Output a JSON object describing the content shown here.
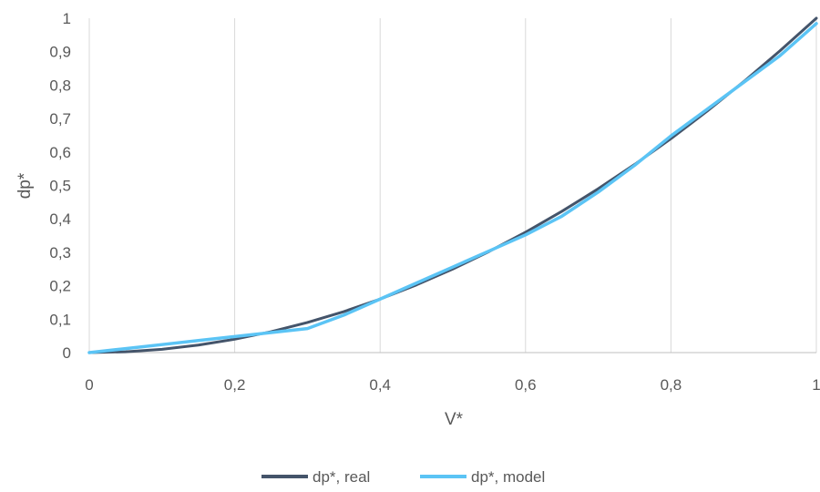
{
  "chart_data": {
    "type": "line",
    "xlabel": "V*",
    "ylabel": "dp*",
    "xlim": [
      0,
      1
    ],
    "ylim": [
      0,
      1
    ],
    "x_ticks": [
      "0",
      "0,2",
      "0,4",
      "0,6",
      "0,8",
      "1"
    ],
    "x_tick_values": [
      0,
      0.2,
      0.4,
      0.6,
      0.8,
      1
    ],
    "y_ticks": [
      "0",
      "0,1",
      "0,2",
      "0,3",
      "0,4",
      "0,5",
      "0,6",
      "0,7",
      "0,8",
      "0,9",
      "1"
    ],
    "y_tick_values": [
      0,
      0.1,
      0.2,
      0.3,
      0.4,
      0.5,
      0.6,
      0.7,
      0.8,
      0.9,
      1
    ],
    "grid": "vertical",
    "legend_position": "bottom",
    "series": [
      {
        "name": "dp*, real",
        "color": "#44546a",
        "x": [
          0,
          0.05,
          0.1,
          0.15,
          0.2,
          0.25,
          0.3,
          0.35,
          0.4,
          0.45,
          0.5,
          0.55,
          0.6,
          0.65,
          0.7,
          0.75,
          0.8,
          0.85,
          0.9,
          0.95,
          1
        ],
        "y": [
          0,
          0.0025,
          0.01,
          0.0225,
          0.04,
          0.0625,
          0.09,
          0.1225,
          0.16,
          0.2025,
          0.25,
          0.3025,
          0.36,
          0.4225,
          0.49,
          0.5625,
          0.64,
          0.7225,
          0.81,
          0.9025,
          1
        ]
      },
      {
        "name": "dp*, model",
        "color": "#5bc4f5",
        "x": [
          0,
          0.05,
          0.1,
          0.15,
          0.2,
          0.25,
          0.3,
          0.35,
          0.4,
          0.45,
          0.5,
          0.55,
          0.6,
          0.65,
          0.7,
          0.75,
          0.8,
          0.85,
          0.9,
          0.95,
          1
        ],
        "y": [
          0,
          0.012,
          0.024,
          0.036,
          0.048,
          0.06,
          0.072,
          0.112,
          0.16,
          0.208,
          0.256,
          0.304,
          0.352,
          0.408,
          0.48,
          0.56,
          0.648,
          0.728,
          0.808,
          0.888,
          0.984
        ]
      }
    ]
  }
}
